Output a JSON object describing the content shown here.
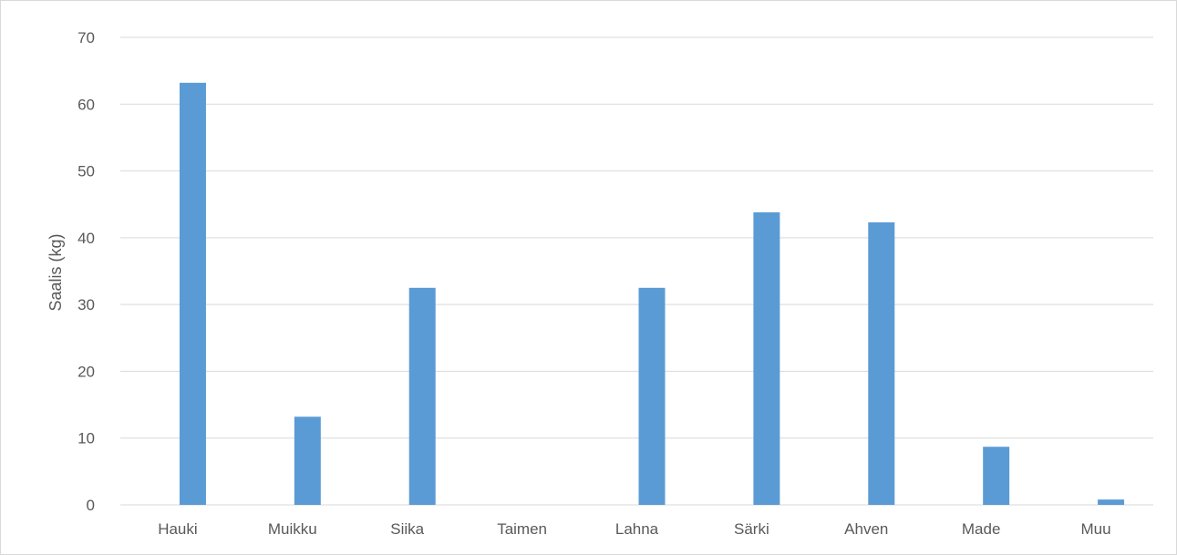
{
  "chart_data": {
    "type": "bar",
    "title": "",
    "xlabel": "",
    "ylabel": "Saalis (kg)",
    "categories": [
      "Hauki",
      "Muikku",
      "Siika",
      "Taimen",
      "Lahna",
      "Särki",
      "Ahven",
      "Made",
      "Muu"
    ],
    "values": [
      63.2,
      13.2,
      32.5,
      0,
      32.5,
      43.8,
      42.3,
      8.7,
      0.8
    ],
    "ylim": [
      0,
      70
    ],
    "yticks": [
      "0",
      "10",
      "20",
      "30",
      "40",
      "50",
      "60",
      "70"
    ],
    "grid": true,
    "legend": "none",
    "bar_color": "#5b9bd5",
    "grid_color": "#d9d9d9",
    "text_color": "#595959"
  }
}
